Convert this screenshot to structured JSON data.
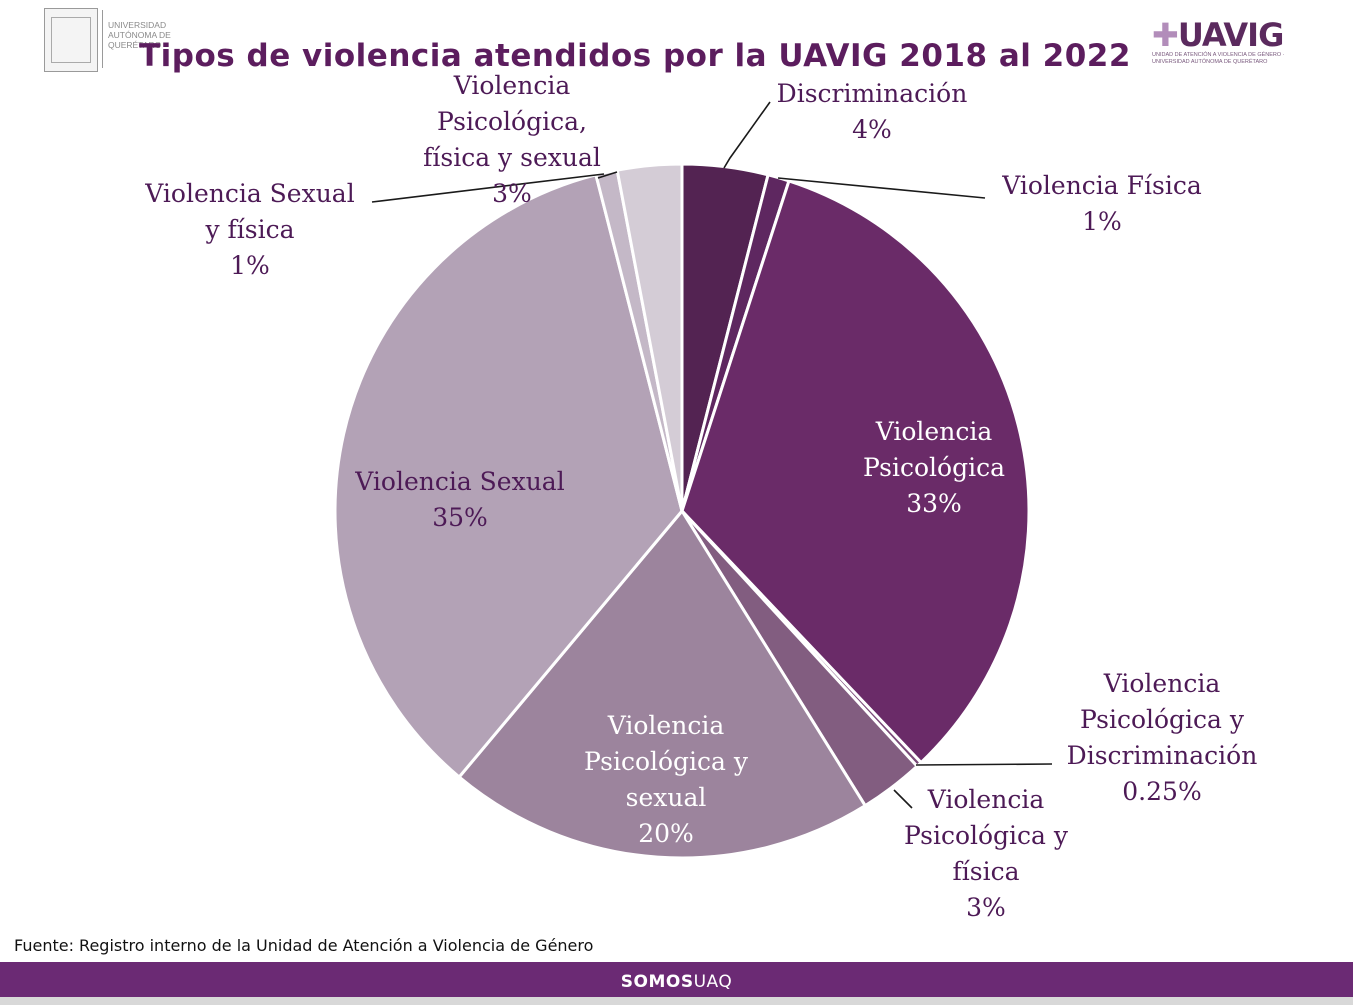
{
  "header": {
    "uaq_logo_text": "Universidad Autónoma de Querétaro",
    "uavig_logo_mark": "UAVIG",
    "uavig_logo_subtitle": "Unidad de Atención a Violencia de Género · Universidad Autónoma de Querétaro"
  },
  "chart_data": {
    "type": "pie",
    "title": "Tipos de violencia atendidos por la UAVIG 2018 al 2022",
    "start_angle_deg": 0,
    "direction": "clockwise",
    "slices": [
      {
        "label_lines": [
          "Discriminación",
          "4%"
        ],
        "value": 4,
        "color": "#532352",
        "label_pos": "outside"
      },
      {
        "label_lines": [
          "Violencia Física",
          "1%"
        ],
        "value": 1,
        "color": "#5e2760",
        "label_pos": "outside"
      },
      {
        "label_lines": [
          "Violencia",
          "Psicológica",
          "33%"
        ],
        "value": 33,
        "color": "#6a2b68",
        "label_pos": "inside-dark"
      },
      {
        "label_lines": [
          "Violencia",
          "Psicológica y",
          "Discriminación",
          "0.25%"
        ],
        "value": 0.25,
        "color": "#7a4a78",
        "label_pos": "outside"
      },
      {
        "label_lines": [
          "Violencia",
          "Psicológica y",
          "física",
          "3%"
        ],
        "value": 3,
        "color": "#825d80",
        "label_pos": "outside"
      },
      {
        "label_lines": [
          "Violencia",
          "Psicológica y",
          "sexual",
          "20%"
        ],
        "value": 20,
        "color": "#9c849d",
        "label_pos": "inside-dark"
      },
      {
        "label_lines": [
          "Violencia Sexual",
          "35%"
        ],
        "value": 35,
        "color": "#b3a2b6",
        "label_pos": "inside"
      },
      {
        "label_lines": [
          "Violencia Sexual",
          "y física",
          "1%"
        ],
        "value": 1,
        "color": "#c4b8c7",
        "label_pos": "outside"
      },
      {
        "label_lines": [
          "Violencia",
          "Psicológica,",
          "física y sexual",
          "3%"
        ],
        "value": 3,
        "color": "#d4ccd6",
        "label_pos": "outside"
      }
    ],
    "legend": "none"
  },
  "source": "Fuente: Registro interno de la Unidad de Atención a Violencia de Género",
  "footer": {
    "brand_bold": "SOMOS",
    "brand_thin": "UAQ"
  }
}
